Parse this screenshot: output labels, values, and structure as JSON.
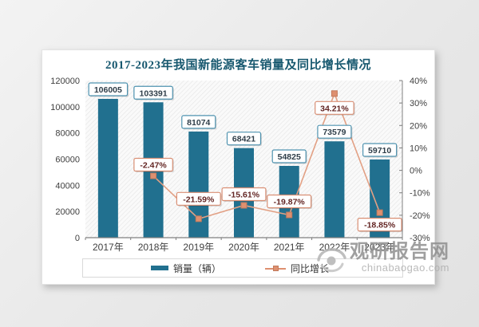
{
  "chart_data": {
    "type": "combo-bar-line",
    "title": "2017-2023年我国新能源客车销量及同比增长情况",
    "categories": [
      "2017年",
      "2018年",
      "2019年",
      "2020年",
      "2021年",
      "2022年",
      "2023年"
    ],
    "series": [
      {
        "name": "销量（辆）",
        "type": "bar",
        "axis": "left",
        "color": "#21708F",
        "values": [
          106005,
          103391,
          81074,
          68421,
          54825,
          73579,
          59710
        ],
        "data_labels": [
          "106005",
          "103391",
          "81074",
          "68421",
          "54825",
          "73579",
          "59710"
        ],
        "label_border_color": "#4F93B0",
        "label_text_color": "#2F3E49"
      },
      {
        "name": "同比增长",
        "type": "line",
        "axis": "right",
        "color": "#E2A084",
        "marker_color": "#DE9070",
        "values": [
          null,
          -2.47,
          -21.59,
          -15.61,
          -19.87,
          34.21,
          -18.85
        ],
        "data_labels": [
          "",
          "-2.47%",
          "-21.59%",
          "-15.61%",
          "-19.87%",
          "34.21%",
          "-18.85%"
        ],
        "label_border_color": "#D98F74",
        "label_text_color": "#632523"
      }
    ],
    "left_axis": {
      "min": 0,
      "max": 120000,
      "ticks": [
        "120000",
        "100000",
        "80000",
        "60000",
        "40000",
        "20000",
        "0"
      ]
    },
    "right_axis": {
      "min": -30,
      "max": 40,
      "ticks": [
        "40%",
        "30%",
        "20%",
        "10%",
        "0%",
        "-10%",
        "-20%",
        "-30%"
      ]
    },
    "grid": false,
    "legend_position": "bottom",
    "plot_background": "diagonal-hatch"
  },
  "legend": {
    "items": [
      {
        "label": "销量（辆）",
        "swatch": "bar",
        "color": "#21708F"
      },
      {
        "label": "同比增长",
        "swatch": "line-marker",
        "color": "#DE9070"
      }
    ]
  },
  "watermark": {
    "icon": "eye-logo-icon",
    "name": "观研报告网",
    "domain": "chinabaogao.com"
  }
}
